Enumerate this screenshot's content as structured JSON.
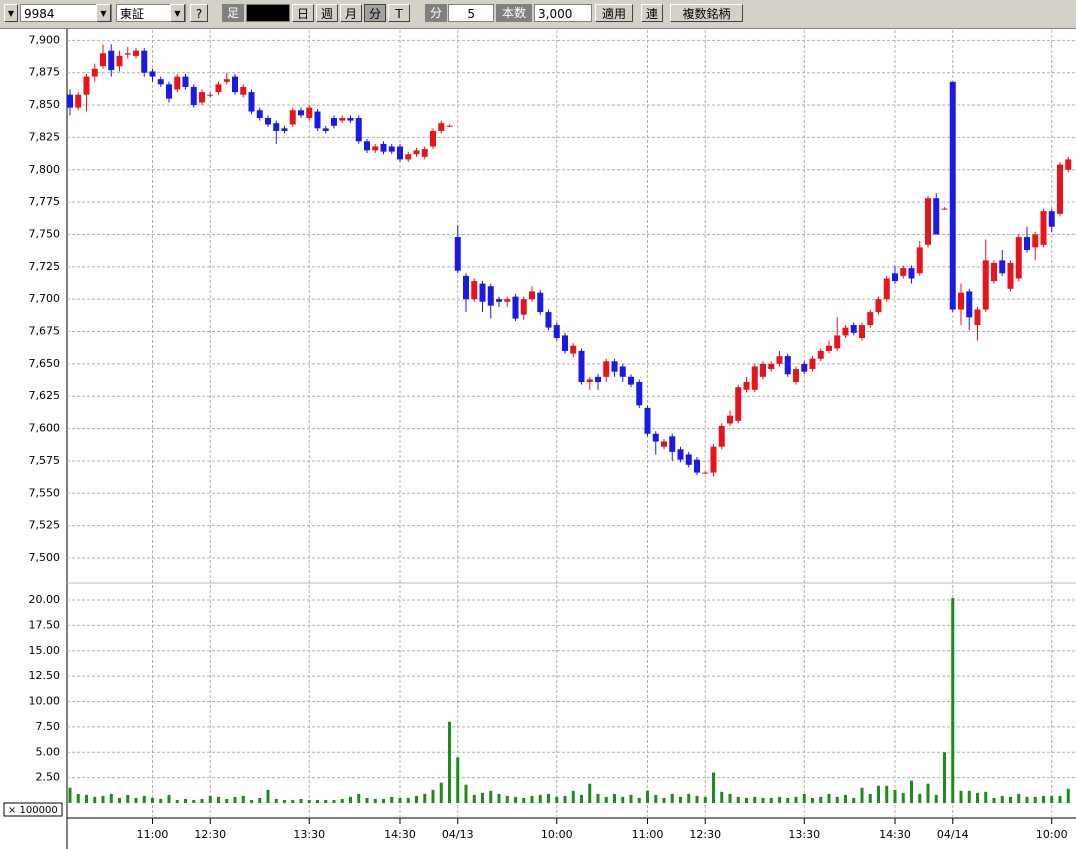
{
  "toolbar": {
    "symbol": "9984",
    "market": "東証",
    "help": "?",
    "bar_label": "足",
    "day": "日",
    "week": "週",
    "month": "月",
    "minute": "分",
    "tick": "T",
    "interval_label": "分",
    "interval": "5",
    "count_label": "本数",
    "count": "3,000",
    "apply": "適用",
    "link": "連",
    "multi": "複数銘柄"
  },
  "chart_data": {
    "type": "candlestick",
    "grid": true,
    "up_color": "#e8141c",
    "down_color": "#1a1ae6",
    "volume_color": "#1a8c1a",
    "ylim": [
      7483,
      7908
    ],
    "yticks": [
      {
        "value": 7500,
        "label": "7,500"
      },
      {
        "value": 7525,
        "label": "7,525"
      },
      {
        "value": 7550,
        "label": "7,550"
      },
      {
        "value": 7575,
        "label": "7,575"
      },
      {
        "value": 7600,
        "label": "7,600"
      },
      {
        "value": 7625,
        "label": "7,625"
      },
      {
        "value": 7650,
        "label": "7,650"
      },
      {
        "value": 7675,
        "label": "7,675"
      },
      {
        "value": 7700,
        "label": "7,700"
      },
      {
        "value": 7725,
        "label": "7,725"
      },
      {
        "value": 7750,
        "label": "7,750"
      },
      {
        "value": 7775,
        "label": "7,775"
      },
      {
        "value": 7800,
        "label": "7,800"
      },
      {
        "value": 7825,
        "label": "7,825"
      },
      {
        "value": 7850,
        "label": "7,850"
      },
      {
        "value": 7875,
        "label": "7,875"
      },
      {
        "value": 7900,
        "label": "7,900"
      }
    ],
    "volume_ylim": [
      0,
      21.5
    ],
    "volume_yticks": [
      {
        "value": 2.5,
        "label": "2.50"
      },
      {
        "value": 5,
        "label": "5.00"
      },
      {
        "value": 7.5,
        "label": "7.50"
      },
      {
        "value": 10,
        "label": "10.00"
      },
      {
        "value": 12.5,
        "label": "12.50"
      },
      {
        "value": 15,
        "label": "15.00"
      },
      {
        "value": 17.5,
        "label": "17.50"
      },
      {
        "value": 20,
        "label": "20.00"
      }
    ],
    "volume_unit": "× 100000",
    "xticks": [
      {
        "value": 10,
        "label": "11:00"
      },
      {
        "value": 17,
        "label": "12:30"
      },
      {
        "value": 29,
        "label": "13:30"
      },
      {
        "value": 40,
        "label": "14:30"
      },
      {
        "value": 47,
        "label": "04/13"
      },
      {
        "value": 59,
        "label": "10:00"
      },
      {
        "value": 70,
        "label": "11:00"
      },
      {
        "value": 77,
        "label": "12:30"
      },
      {
        "value": 89,
        "label": "13:30"
      },
      {
        "value": 100,
        "label": "14:30"
      },
      {
        "value": 107,
        "label": "04/14"
      },
      {
        "value": 119,
        "label": "10:00"
      }
    ],
    "open": [
      7858,
      7848,
      7858,
      7872,
      7880,
      7892,
      7880,
      7889,
      7888,
      7892,
      7876,
      7870,
      7866,
      7862,
      7872,
      7864,
      7852,
      7858,
      7860,
      7868,
      7872,
      7858,
      7860,
      7846,
      7840,
      7836,
      7832,
      7835,
      7846,
      7840,
      7845,
      7832,
      7840,
      7838,
      7840,
      7840,
      7822,
      7815,
      7820,
      7818,
      7818,
      7808,
      7812,
      7810,
      7818,
      7830,
      7834,
      7748,
      7718,
      7700,
      7712,
      7710,
      7700,
      7698,
      7702,
      7688,
      7700,
      7705,
      7690,
      7680,
      7672,
      7658,
      7660,
      7636,
      7640,
      7640,
      7652,
      7648,
      7640,
      7636,
      7616,
      7596,
      7586,
      7594,
      7584,
      7580,
      7576,
      7566,
      7566,
      7586,
      7604,
      7606,
      7630,
      7630,
      7640,
      7646,
      7650,
      7656,
      7636,
      7650,
      7646,
      7654,
      7660,
      7662,
      7672,
      7680,
      7670,
      7680,
      7690,
      7700,
      7720,
      7718,
      7724,
      7720,
      7742,
      7778,
      7770,
      7868,
      7692,
      7706,
      7680,
      7692,
      7714,
      7730,
      7708,
      7716,
      7748,
      7740,
      7742,
      7768,
      7766,
      7800
    ],
    "high": [
      7862,
      7860,
      7874,
      7882,
      7897,
      7897,
      7892,
      7895,
      7894,
      7894,
      7878,
      7872,
      7868,
      7874,
      7874,
      7866,
      7862,
      7860,
      7868,
      7875,
      7874,
      7866,
      7862,
      7848,
      7842,
      7838,
      7834,
      7848,
      7848,
      7850,
      7847,
      7834,
      7842,
      7842,
      7842,
      7842,
      7824,
      7820,
      7822,
      7820,
      7820,
      7814,
      7817,
      7818,
      7832,
      7838,
      7835,
      7757,
      7720,
      7716,
      7714,
      7712,
      7702,
      7702,
      7704,
      7702,
      7710,
      7707,
      7692,
      7682,
      7674,
      7666,
      7662,
      7640,
      7642,
      7654,
      7654,
      7650,
      7642,
      7638,
      7618,
      7598,
      7592,
      7596,
      7586,
      7582,
      7578,
      7567,
      7588,
      7604,
      7614,
      7634,
      7640,
      7650,
      7652,
      7652,
      7660,
      7658,
      7648,
      7652,
      7656,
      7662,
      7668,
      7686,
      7680,
      7682,
      7682,
      7692,
      7702,
      7718,
      7726,
      7726,
      7726,
      7745,
      7780,
      7782,
      7771,
      7868,
      7712,
      7708,
      7694,
      7746,
      7730,
      7738,
      7730,
      7750,
      7756,
      7752,
      7770,
      7770,
      7806,
      7810
    ],
    "low": [
      7842,
      7846,
      7845,
      7868,
      7878,
      7872,
      7876,
      7886,
      7886,
      7872,
      7868,
      7864,
      7852,
      7860,
      7862,
      7848,
      7850,
      7856,
      7858,
      7866,
      7858,
      7856,
      7843,
      7838,
      7833,
      7820,
      7828,
      7833,
      7840,
      7838,
      7830,
      7828,
      7832,
      7836,
      7836,
      7820,
      7813,
      7813,
      7812,
      7812,
      7806,
      7806,
      7810,
      7808,
      7816,
      7828,
      7833,
      7720,
      7690,
      7698,
      7690,
      7685,
      7694,
      7694,
      7683,
      7684,
      7698,
      7688,
      7676,
      7668,
      7658,
      7655,
      7634,
      7630,
      7630,
      7636,
      7640,
      7636,
      7632,
      7616,
      7594,
      7580,
      7584,
      7575,
      7574,
      7570,
      7564,
      7565,
      7563,
      7584,
      7602,
      7604,
      7628,
      7628,
      7638,
      7644,
      7648,
      7640,
      7634,
      7642,
      7644,
      7652,
      7658,
      7660,
      7670,
      7672,
      7668,
      7678,
      7688,
      7698,
      7712,
      7716,
      7712,
      7718,
      7740,
      7750,
      7769,
      7690,
      7680,
      7676,
      7668,
      7690,
      7712,
      7718,
      7706,
      7714,
      7736,
      7730,
      7740,
      7752,
      7764,
      7798
    ],
    "close": [
      7848,
      7858,
      7872,
      7878,
      7890,
      7877,
      7888,
      7890,
      7892,
      7875,
      7872,
      7866,
      7855,
      7872,
      7864,
      7850,
      7860,
      7858,
      7866,
      7870,
      7860,
      7864,
      7845,
      7840,
      7835,
      7830,
      7830,
      7846,
      7842,
      7848,
      7832,
      7830,
      7834,
      7840,
      7838,
      7822,
      7815,
      7818,
      7814,
      7814,
      7808,
      7812,
      7815,
      7816,
      7830,
      7836,
      7834,
      7722,
      7700,
      7714,
      7698,
      7695,
      7698,
      7700,
      7685,
      7700,
      7706,
      7690,
      7678,
      7670,
      7660,
      7664,
      7636,
      7638,
      7636,
      7652,
      7644,
      7640,
      7634,
      7618,
      7596,
      7590,
      7590,
      7582,
      7576,
      7572,
      7566,
      7566,
      7586,
      7602,
      7610,
      7632,
      7636,
      7648,
      7650,
      7650,
      7656,
      7642,
      7646,
      7644,
      7654,
      7660,
      7664,
      7672,
      7678,
      7674,
      7680,
      7690,
      7700,
      7716,
      7714,
      7724,
      7716,
      7740,
      7778,
      7750,
      7770,
      7692,
      7705,
      7686,
      7692,
      7730,
      7728,
      7720,
      7728,
      7748,
      7738,
      7750,
      7768,
      7756,
      7804,
      7808
    ],
    "volume": [
      1.5,
      0.9,
      0.8,
      0.6,
      0.7,
      0.9,
      0.5,
      0.8,
      0.5,
      0.7,
      0.5,
      0.4,
      0.8,
      0.3,
      0.4,
      0.3,
      0.4,
      0.7,
      0.6,
      0.4,
      0.6,
      0.7,
      0.3,
      0.5,
      1.3,
      0.4,
      0.3,
      0.3,
      0.4,
      0.3,
      0.3,
      0.3,
      0.3,
      0.4,
      0.6,
      0.9,
      0.5,
      0.4,
      0.4,
      0.6,
      0.5,
      0.5,
      0.7,
      0.9,
      1.3,
      2.0,
      8.0,
      4.5,
      1.8,
      0.8,
      1.0,
      1.2,
      0.9,
      0.7,
      0.6,
      0.5,
      0.7,
      0.8,
      0.9,
      0.6,
      0.7,
      1.2,
      0.8,
      1.9,
      0.9,
      0.6,
      0.9,
      0.6,
      0.8,
      0.5,
      1.2,
      0.8,
      0.5,
      0.9,
      0.6,
      0.9,
      0.7,
      0.6,
      3.0,
      1.1,
      0.9,
      0.6,
      0.5,
      0.6,
      0.5,
      0.5,
      0.6,
      0.5,
      0.6,
      0.9,
      0.5,
      0.6,
      0.9,
      0.6,
      0.8,
      0.5,
      1.5,
      0.9,
      1.7,
      1.7,
      1.3,
      1.0,
      2.2,
      0.9,
      1.9,
      0.8,
      5.0,
      20.2,
      1.2,
      1.2,
      1.0,
      1.1,
      0.5,
      0.7,
      0.6,
      0.9,
      0.6,
      0.6,
      0.7,
      0.7,
      0.7,
      1.4
    ]
  }
}
